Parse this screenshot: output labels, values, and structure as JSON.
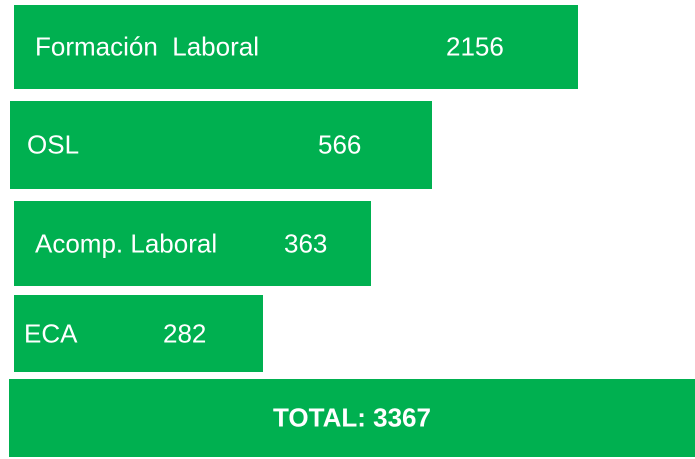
{
  "items": [
    {
      "label": "Formación  Laboral",
      "value": 2156
    },
    {
      "label": "OSL",
      "value": 566
    },
    {
      "label": "Acomp. Laboral",
      "value": 363
    },
    {
      "label": "ECA",
      "value": 282
    }
  ],
  "total": {
    "label": "TOTAL:",
    "value": 3367
  }
}
